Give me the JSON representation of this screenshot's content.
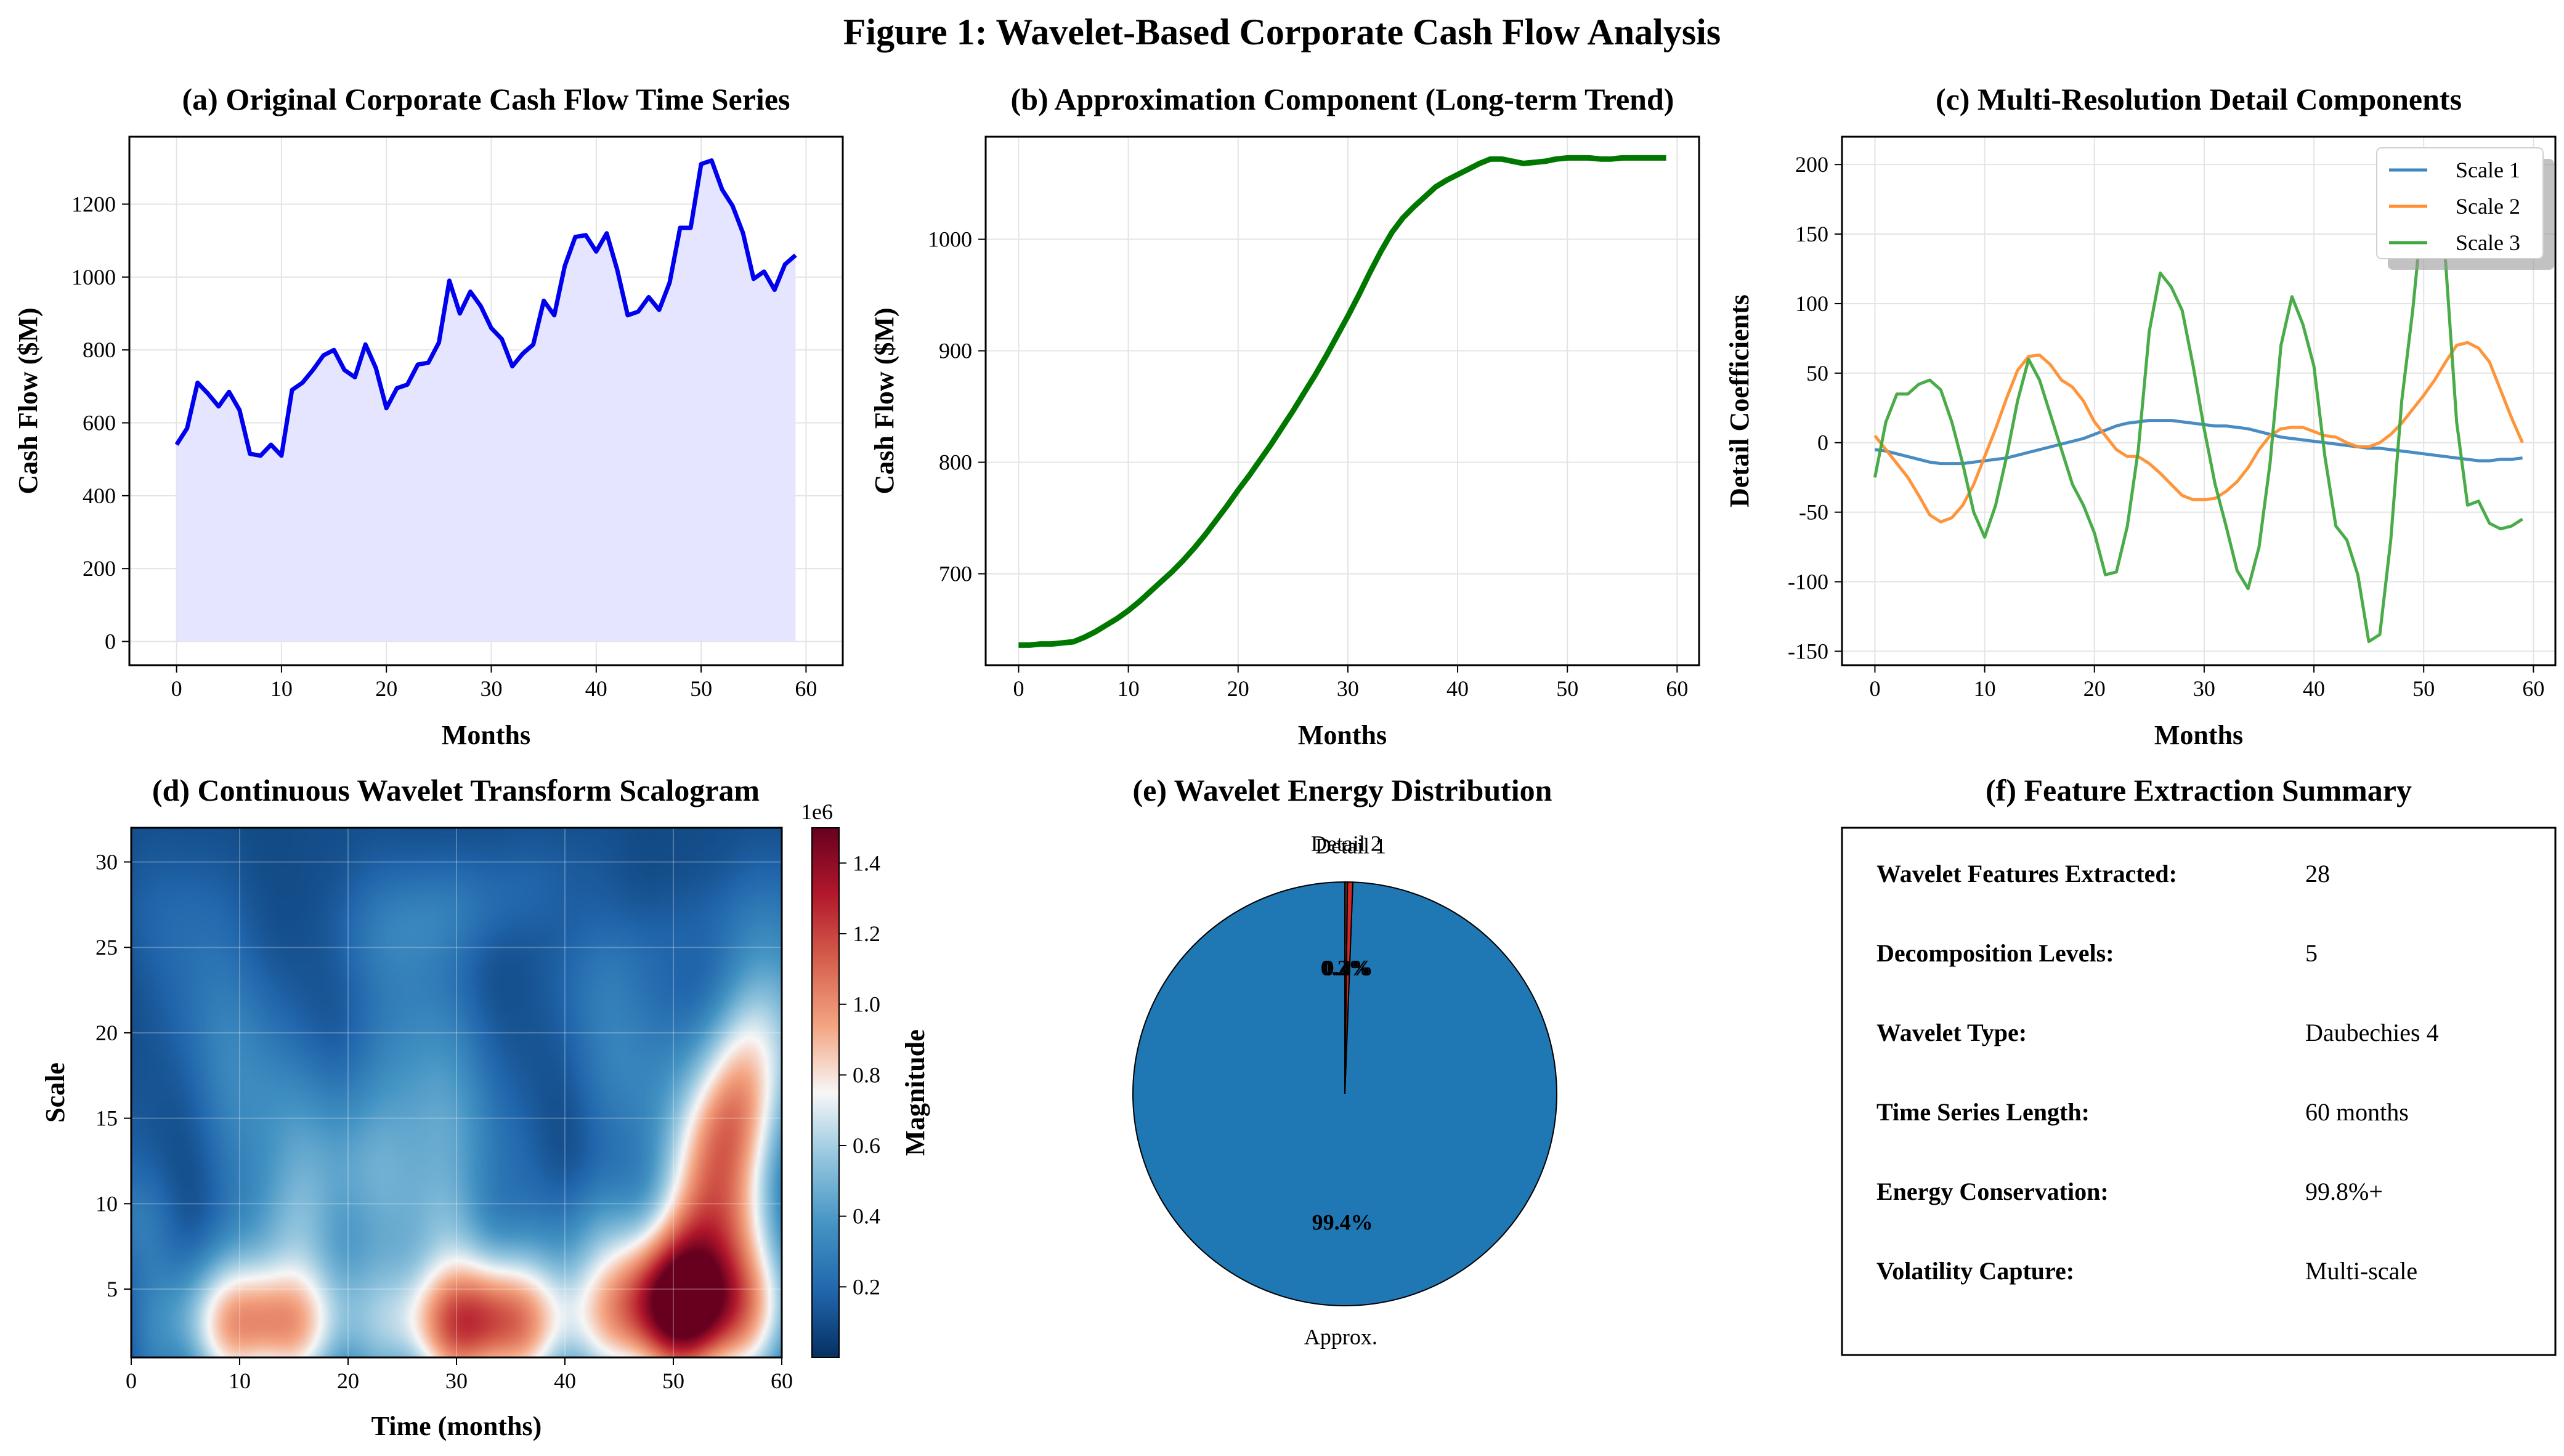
{
  "figure": {
    "title": "Figure 1: Wavelet-Based Corporate Cash Flow Analysis"
  },
  "colors": {
    "cashflow_line": "#0000ee",
    "cashflow_fill": "#e5e5ff",
    "trend_line": "#007800",
    "scale1": "#3f86bf",
    "scale2": "#ff8f30",
    "scale3": "#3fa83f",
    "pie_approx": "#1f77b4",
    "pie_detail": "#d62728"
  },
  "chart_data": [
    {
      "id": "a",
      "type": "line",
      "title": "(a) Original Corporate Cash Flow Time Series",
      "xlabel": "Months",
      "ylabel": "Cash Flow ($M)",
      "xlim": [
        -4.5,
        63.5
      ],
      "ylim": [
        -65,
        1385
      ],
      "xticks": [
        0,
        10,
        20,
        30,
        40,
        50,
        60
      ],
      "yticks": [
        0,
        200,
        400,
        600,
        800,
        1000,
        1200
      ],
      "grid": true,
      "fill_to_zero": true,
      "x": [
        0,
        1,
        2,
        3,
        4,
        5,
        6,
        7,
        8,
        9,
        10,
        11,
        12,
        13,
        14,
        15,
        16,
        17,
        18,
        19,
        20,
        21,
        22,
        23,
        24,
        25,
        26,
        27,
        28,
        29,
        30,
        31,
        32,
        33,
        34,
        35,
        36,
        37,
        38,
        39,
        40,
        41,
        42,
        43,
        44,
        45,
        46,
        47,
        48,
        49,
        50,
        51,
        52,
        53,
        54,
        55,
        56,
        57,
        58,
        59
      ],
      "values": [
        540,
        585,
        710,
        680,
        645,
        685,
        635,
        515,
        510,
        540,
        510,
        690,
        710,
        745,
        785,
        800,
        745,
        725,
        815,
        750,
        640,
        695,
        705,
        760,
        765,
        820,
        990,
        900,
        960,
        920,
        860,
        830,
        755,
        790,
        815,
        935,
        895,
        1030,
        1110,
        1115,
        1070,
        1120,
        1020,
        895,
        905,
        945,
        910,
        985,
        1135,
        1135,
        1310,
        1320,
        1240,
        1195,
        1120,
        995,
        1015,
        965,
        1035,
        1060
      ]
    },
    {
      "id": "b",
      "type": "line",
      "title": "(b) Approximation Component (Long-term Trend)",
      "xlabel": "Months",
      "ylabel": "Cash Flow ($M)",
      "xlim": [
        -3,
        62
      ],
      "ylim": [
        618,
        1092
      ],
      "xticks": [
        0,
        10,
        20,
        30,
        40,
        50,
        60
      ],
      "yticks": [
        700,
        800,
        900,
        1000
      ],
      "grid": true,
      "x": [
        0,
        1,
        2,
        3,
        4,
        5,
        6,
        7,
        8,
        9,
        10,
        11,
        12,
        13,
        14,
        15,
        16,
        17,
        18,
        19,
        20,
        21,
        22,
        23,
        24,
        25,
        26,
        27,
        28,
        29,
        30,
        31,
        32,
        33,
        34,
        35,
        36,
        37,
        38,
        39,
        40,
        41,
        42,
        43,
        44,
        45,
        46,
        47,
        48,
        49,
        50,
        51,
        52,
        53,
        54,
        55,
        56,
        57,
        58,
        59
      ],
      "values": [
        636,
        636,
        637,
        637,
        638,
        639,
        643,
        648,
        654,
        660,
        667,
        675,
        684,
        693,
        702,
        712,
        723,
        735,
        748,
        761,
        775,
        788,
        802,
        816,
        831,
        846,
        862,
        878,
        895,
        913,
        931,
        950,
        970,
        989,
        1006,
        1019,
        1029,
        1038,
        1047,
        1053,
        1058,
        1063,
        1068,
        1072,
        1072,
        1070,
        1068,
        1069,
        1070,
        1072,
        1073,
        1073,
        1073,
        1072,
        1072,
        1073,
        1073,
        1073,
        1073,
        1073
      ]
    },
    {
      "id": "c",
      "type": "line",
      "title": "(c) Multi-Resolution Detail Components",
      "xlabel": "Months",
      "ylabel": "Detail Coefficients",
      "xlim": [
        -3,
        62
      ],
      "ylim": [
        -160,
        220
      ],
      "xticks": [
        0,
        10,
        20,
        30,
        40,
        50,
        60
      ],
      "yticks": [
        -150,
        -100,
        -50,
        0,
        50,
        100,
        150,
        200
      ],
      "grid": true,
      "legend": "top-right",
      "x": [
        0,
        1,
        2,
        3,
        4,
        5,
        6,
        7,
        8,
        9,
        10,
        11,
        12,
        13,
        14,
        15,
        16,
        17,
        18,
        19,
        20,
        21,
        22,
        23,
        24,
        25,
        26,
        27,
        28,
        29,
        30,
        31,
        32,
        33,
        34,
        35,
        36,
        37,
        38,
        39,
        40,
        41,
        42,
        43,
        44,
        45,
        46,
        47,
        48,
        49,
        50,
        51,
        52,
        53,
        54,
        55,
        56,
        57,
        58,
        59
      ],
      "series": [
        {
          "name": "Scale 1",
          "values": [
            -5,
            -6,
            -8,
            -10,
            -12,
            -14,
            -15,
            -15,
            -15,
            -14,
            -13,
            -12,
            -11,
            -9,
            -7,
            -5,
            -3,
            -1,
            1,
            3,
            6,
            9,
            12,
            14,
            15,
            16,
            16,
            16,
            15,
            14,
            13,
            12,
            12,
            11,
            10,
            8,
            6,
            4,
            3,
            2,
            1,
            0,
            -1,
            -2,
            -3,
            -4,
            -4,
            -5,
            -6,
            -7,
            -8,
            -9,
            -10,
            -11,
            -12,
            -13,
            -13,
            -12,
            -12,
            -11
          ]
        },
        {
          "name": "Scale 2",
          "values": [
            5,
            -5,
            -15,
            -25,
            -38,
            -52,
            -57,
            -54,
            -45,
            -30,
            -10,
            10,
            32,
            52,
            62,
            63,
            56,
            45,
            40,
            30,
            15,
            5,
            -5,
            -10,
            -10,
            -15,
            -22,
            -30,
            -38,
            -41,
            -41,
            -40,
            -35,
            -28,
            -18,
            -5,
            5,
            10,
            11,
            11,
            8,
            5,
            4,
            0,
            -3,
            -3,
            0,
            6,
            14,
            24,
            34,
            45,
            58,
            70,
            72,
            68,
            58,
            38,
            18,
            0
          ]
        },
        {
          "name": "Scale 3",
          "values": [
            -25,
            15,
            35,
            35,
            42,
            45,
            38,
            15,
            -15,
            -50,
            -68,
            -45,
            -10,
            30,
            60,
            45,
            20,
            -5,
            -30,
            -45,
            -65,
            -95,
            -93,
            -60,
            -5,
            80,
            122,
            112,
            95,
            55,
            10,
            -30,
            -60,
            -92,
            -105,
            -75,
            -15,
            70,
            105,
            85,
            55,
            -10,
            -60,
            -70,
            -95,
            -143,
            -138,
            -70,
            30,
            95,
            175,
            190,
            130,
            15,
            -45,
            -42,
            -58,
            -62,
            -60,
            -55
          ]
        }
      ]
    },
    {
      "id": "d",
      "type": "heatmap",
      "title": "(d) Continuous Wavelet Transform Scalogram",
      "xlabel": "Time (months)",
      "ylabel": "Scale",
      "colorbar_label": "Magnitude",
      "colorbar_offset": "1e6",
      "xlim": [
        0,
        60
      ],
      "ylim": [
        1,
        32
      ],
      "xticks": [
        0,
        10,
        20,
        30,
        40,
        50,
        60
      ],
      "yticks": [
        5,
        10,
        15,
        20,
        25,
        30
      ],
      "cticks": [
        0.2,
        0.4,
        0.6,
        0.8,
        1.0,
        1.2,
        1.4
      ],
      "cticks_labels": [
        "0.2",
        "0.4",
        "0.6",
        "0.8",
        "1.0",
        "1.2",
        "1.4"
      ],
      "vmin": 0,
      "vmax": 1.5,
      "blobs": [
        {
          "x": 12,
          "scale": 3,
          "magnitude": 0.95
        },
        {
          "x": 32,
          "scale": 3,
          "magnitude": 1.15
        },
        {
          "x": 51,
          "scale": 4,
          "magnitude": 1.48
        },
        {
          "x": 55,
          "scale": 14,
          "magnitude": 1.0
        }
      ]
    },
    {
      "id": "e",
      "type": "pie",
      "title": "(e) Wavelet Energy Distribution",
      "labels": [
        "Approx.",
        "Detail 1",
        "Detail 2"
      ],
      "values": [
        99.4,
        0.4,
        0.2
      ],
      "autopct": [
        "99.4%",
        "0.4%",
        "0.2%"
      ]
    },
    {
      "id": "f",
      "type": "table",
      "title": "(f) Feature Extraction Summary",
      "rows": [
        {
          "key": "Wavelet Features Extracted:",
          "value": "28"
        },
        {
          "key": "Decomposition Levels:",
          "value": "5"
        },
        {
          "key": "Wavelet Type:",
          "value": "Daubechies 4"
        },
        {
          "key": "Time Series Length:",
          "value": "60 months"
        },
        {
          "key": "Energy Conservation:",
          "value": "99.8%+"
        },
        {
          "key": "Volatility Capture:",
          "value": "Multi-scale"
        }
      ]
    }
  ]
}
